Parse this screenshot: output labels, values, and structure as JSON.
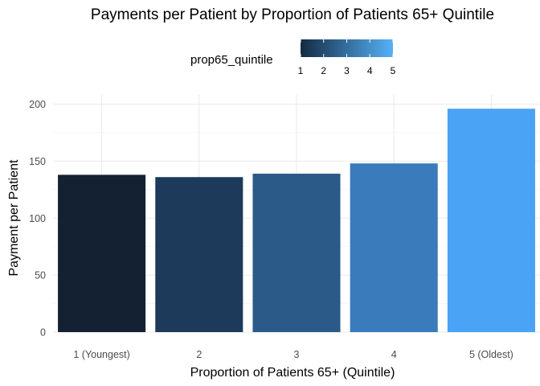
{
  "chart_data": {
    "type": "bar",
    "title": "Payments per Patient by Proportion of Patients 65+ Quintile",
    "xlabel": "Proportion of Patients 65+ (Quintile)",
    "ylabel": "Payment per Patient",
    "categories": [
      "1 (Youngest)",
      "2",
      "3",
      "4",
      "5 (Oldest)"
    ],
    "values": [
      138,
      136,
      139,
      148,
      196
    ],
    "ylim": [
      0,
      200
    ],
    "yticks": [
      "0",
      "50",
      "100",
      "150",
      "200"
    ],
    "grid": true,
    "bar_colors": [
      "#132132",
      "#1e3a5a",
      "#2b5a89",
      "#3a7bbb",
      "#4aa3f5"
    ],
    "legend": {
      "title": "prop65_quintile",
      "position": "top",
      "ticks": [
        "1",
        "2",
        "3",
        "4",
        "5"
      ],
      "gradient_low": "#132b43",
      "gradient_high": "#56b1f7"
    }
  }
}
